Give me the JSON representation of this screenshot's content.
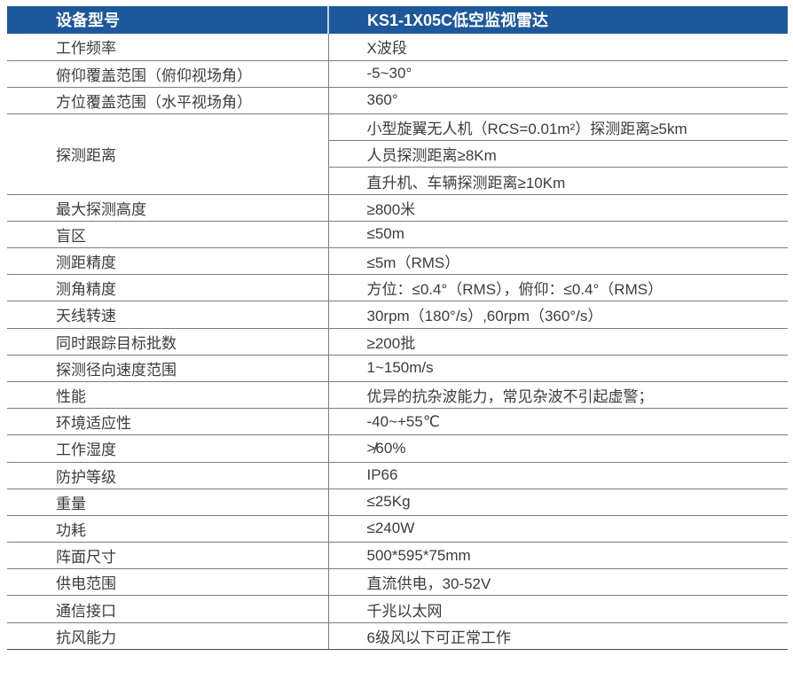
{
  "colors": {
    "header_bg": "#1d589c",
    "header_text": "#ffffff",
    "body_text": "#3c3c3c",
    "border": "#7d7d7d"
  },
  "table": {
    "header": {
      "model_label": "设备型号",
      "model_value": "KS1-1X05C低空监视雷达"
    },
    "rows": [
      {
        "label": "工作频率",
        "value": "X波段"
      },
      {
        "label": "俯仰覆盖范围（俯仰视场角）",
        "value": "-5~30°"
      },
      {
        "label": "方位覆盖范围（水平视场角）",
        "value": "360°"
      },
      {
        "label": "探测距离",
        "values": [
          "小型旋翼无人机（RCS=0.01m²）探测距离≥5km",
          "人员探测距离≥8Km",
          "直升机、车辆探测距离≥10Km"
        ]
      },
      {
        "label": "最大探测高度",
        "value": "≥800米"
      },
      {
        "label": "盲区",
        "value": "≤50m"
      },
      {
        "label": "测距精度",
        "value": "≤5m（RMS）"
      },
      {
        "label": "测角精度",
        "value": "方位：≤0.4°（RMS），俯仰：≤0.4°（RMS）"
      },
      {
        "label": "天线转速",
        "value": "30rpm（180°/s）,60rpm（360°/s）"
      },
      {
        "label": "同时跟踪目标批数",
        "value": "≥200批"
      },
      {
        "label": "探测径向速度范围",
        "value": "1~150m/s"
      },
      {
        "label": "性能",
        "value": "优异的抗杂波能力，常见杂波不引起虚警；"
      },
      {
        "label": "环境适应性",
        "value": "-40~+55℃"
      },
      {
        "label": "工作湿度",
        "value": "≯60%"
      },
      {
        "label": "防护等级",
        "value": "IP66"
      },
      {
        "label": "重量",
        "value": "≤25Kg"
      },
      {
        "label": "功耗",
        "value": "≤240W"
      },
      {
        "label": "阵面尺寸",
        "value": "500*595*75mm"
      },
      {
        "label": "供电范围",
        "value": "直流供电，30-52V"
      },
      {
        "label": "通信接口",
        "value": "千兆以太网"
      },
      {
        "label": "抗风能力",
        "value": "6级风以下可正常工作"
      }
    ]
  }
}
